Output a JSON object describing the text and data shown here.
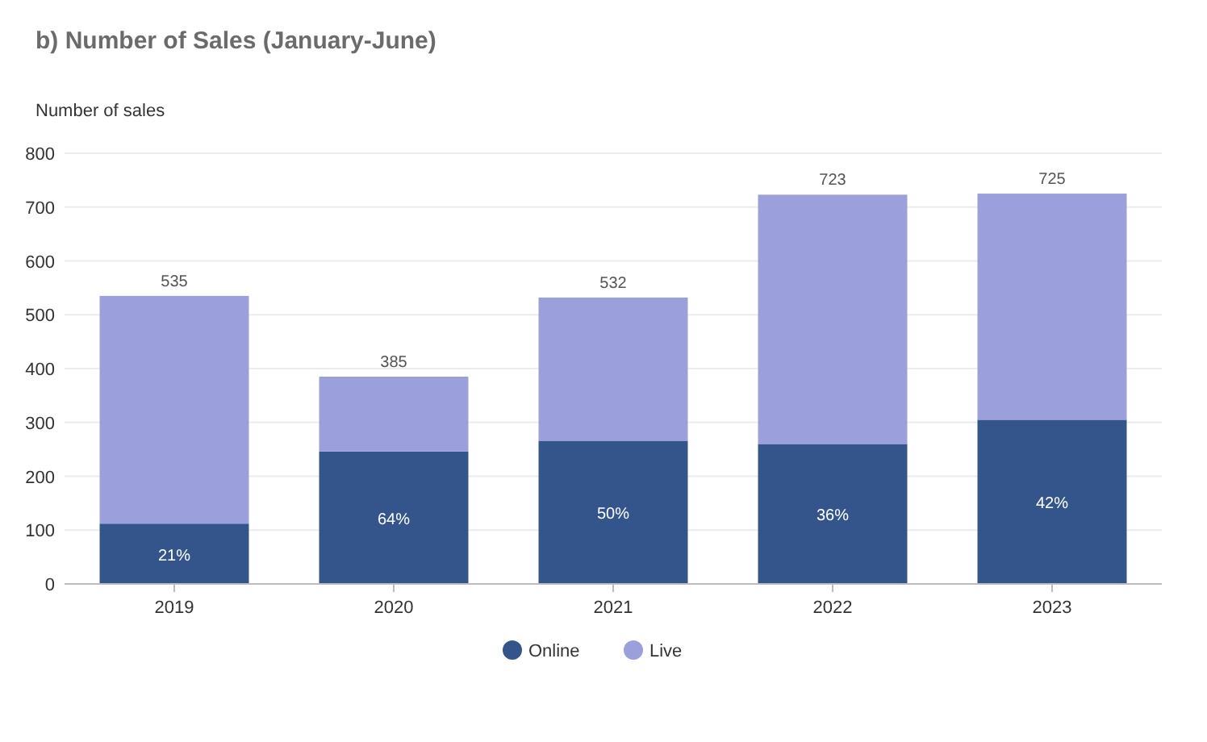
{
  "chart_data": {
    "type": "bar",
    "title": "b) Number of Sales (January-June)",
    "ylabel": "Number of sales",
    "categories": [
      "2019",
      "2020",
      "2021",
      "2022",
      "2023"
    ],
    "stacked": true,
    "series": [
      {
        "name": "Online",
        "color": "#34558b",
        "values": [
          112,
          246,
          266,
          260,
          305
        ]
      },
      {
        "name": "Live",
        "color": "#9b9fdb",
        "values": [
          423,
          139,
          266,
          463,
          420
        ]
      }
    ],
    "annotations": [
      "21%",
      "64%",
      "50%",
      "36%",
      "42%"
    ],
    "totals": [
      "535",
      "385",
      "532",
      "723",
      "725"
    ],
    "ylim": [
      0,
      800
    ],
    "yticks": [
      0,
      100,
      200,
      300,
      400,
      500,
      600,
      700,
      800
    ],
    "grid": "y",
    "legend": "bottom"
  }
}
